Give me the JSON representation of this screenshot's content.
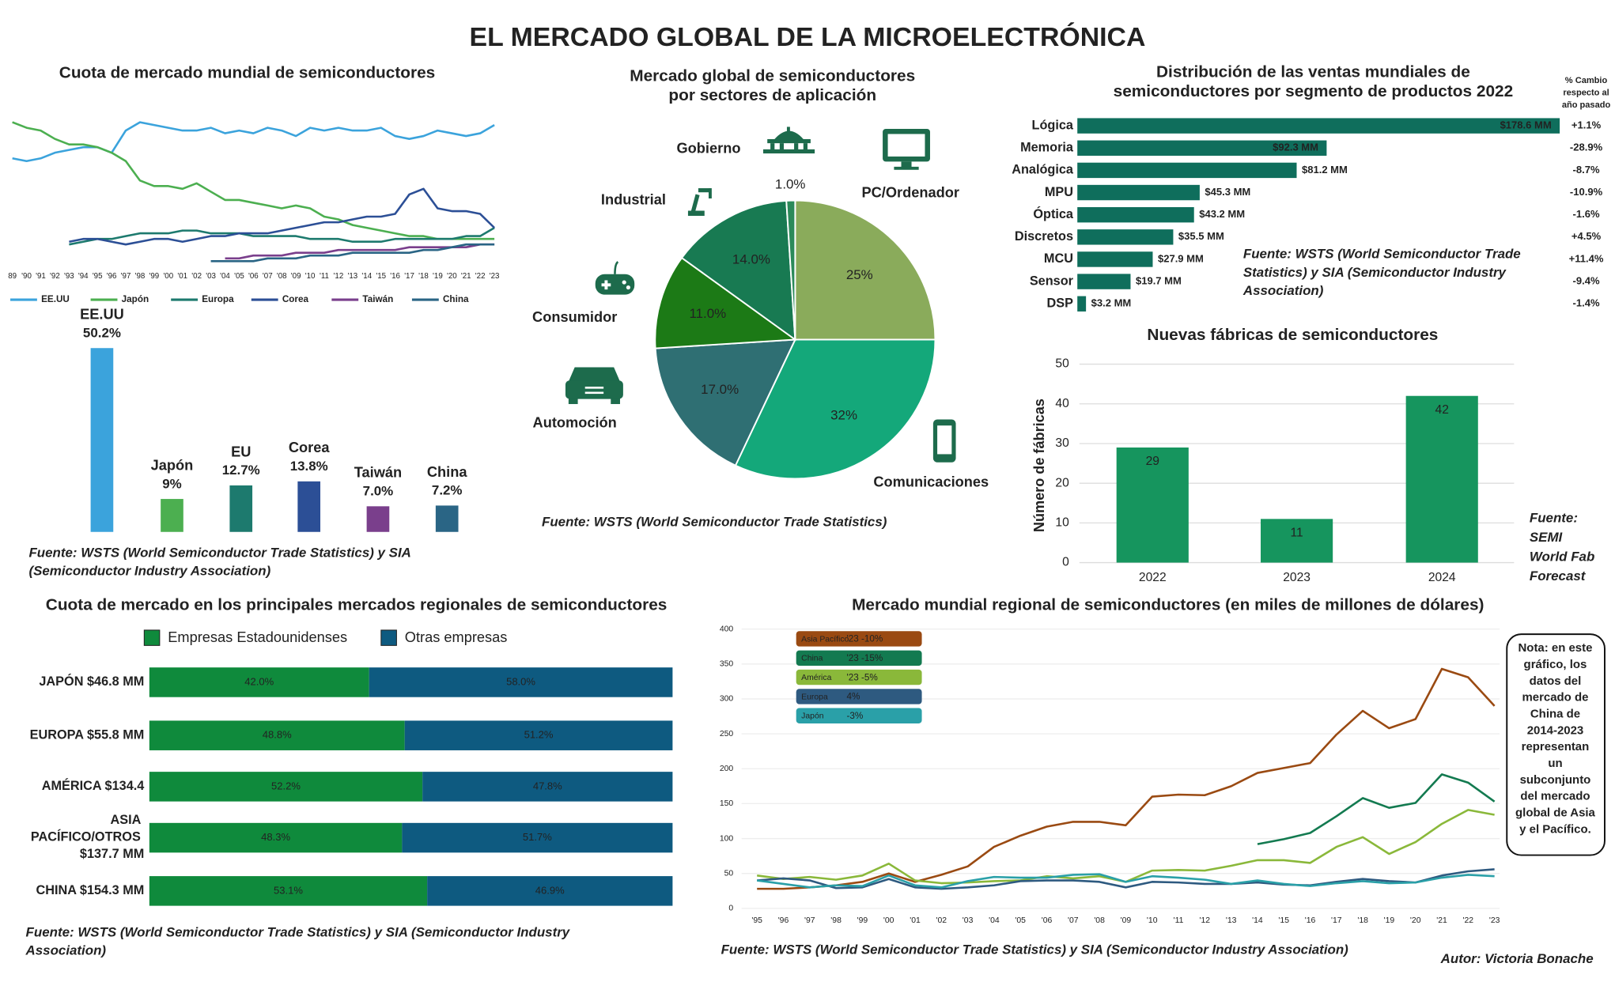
{
  "title": "EL MERCADO GLOBAL DE LA MICROELECTRÓNICA",
  "author": "Autor: Victoria Bonache",
  "chart_data": [
    {
      "type": "line",
      "title": "Cuota de mercado mundial de semiconductores",
      "categories": [
        "89",
        "'90",
        "'91",
        "'92",
        "'93",
        "'94",
        "'95",
        "'96",
        "'97",
        "'98",
        "'99",
        "'00",
        "'01",
        "'02",
        "'03",
        "'04",
        "'05",
        "'06",
        "'07",
        "'08",
        "'09",
        "'10",
        "'11",
        "'12",
        "'13",
        "'14",
        "'15",
        "'16",
        "'17",
        "'18",
        "'19",
        "'20",
        "'21",
        "'22",
        "'23"
      ],
      "ylim": [
        0,
        60
      ],
      "series": [
        {
          "name": "EE.UU",
          "color": "#3ba3dc",
          "values": [
            38,
            37,
            38,
            40,
            41,
            42,
            42,
            40,
            48,
            51,
            50,
            49,
            48,
            48,
            49,
            47,
            48,
            47,
            49,
            48,
            46,
            49,
            48,
            49,
            48,
            48,
            49,
            46,
            45,
            46,
            48,
            47,
            46,
            47,
            50
          ]
        },
        {
          "name": "Japón",
          "color": "#4caf50",
          "values": [
            51,
            49,
            48,
            45,
            43,
            43,
            42,
            40,
            37,
            30,
            28,
            28,
            27,
            29,
            26,
            23,
            23,
            22,
            21,
            20,
            21,
            20,
            17,
            16,
            14,
            13,
            12,
            11,
            10,
            10,
            9,
            9,
            9,
            9,
            9
          ]
        },
        {
          "name": "Europa",
          "color": "#1d7a6e",
          "values": [
            null,
            null,
            null,
            null,
            7,
            8,
            9,
            9,
            10,
            11,
            11,
            11,
            12,
            12,
            11,
            11,
            11,
            10,
            10,
            10,
            10,
            9,
            9,
            9,
            8,
            8,
            8,
            9,
            9,
            9,
            9,
            9,
            10,
            10,
            13
          ]
        },
        {
          "name": "Corea",
          "color": "#2c4f96",
          "values": [
            null,
            null,
            null,
            null,
            8,
            9,
            9,
            8,
            7,
            8,
            9,
            9,
            8,
            9,
            10,
            10,
            11,
            11,
            11,
            12,
            13,
            14,
            15,
            15,
            16,
            17,
            17,
            18,
            25,
            27,
            20,
            19,
            19,
            18,
            13
          ]
        },
        {
          "name": "Taiwán",
          "color": "#7a3f8c",
          "values": [
            null,
            null,
            null,
            null,
            null,
            null,
            null,
            null,
            null,
            null,
            null,
            null,
            null,
            null,
            null,
            2,
            2,
            3,
            3,
            3,
            4,
            4,
            4,
            5,
            5,
            5,
            5,
            5,
            6,
            6,
            6,
            6,
            6,
            7,
            7
          ]
        },
        {
          "name": "China",
          "color": "#2a6585",
          "values": [
            null,
            null,
            null,
            null,
            null,
            null,
            null,
            null,
            null,
            null,
            null,
            null,
            null,
            null,
            1,
            1,
            1,
            1,
            2,
            2,
            2,
            3,
            3,
            3,
            4,
            4,
            4,
            4,
            4,
            5,
            5,
            6,
            7,
            7,
            7
          ]
        }
      ]
    },
    {
      "type": "bar",
      "categories": [
        "EE.UU",
        "Japón",
        "EU",
        "Corea",
        "Taiwán",
        "China"
      ],
      "values": [
        50.2,
        9,
        12.7,
        13.8,
        7.0,
        7.2
      ],
      "value_labels": [
        "50.2%",
        "9%",
        "12.7%",
        "13.8%",
        "7.0%",
        "7.2%"
      ],
      "colors": [
        "#3ba3dc",
        "#4caf50",
        "#1d7a6e",
        "#2c4f96",
        "#7a3f8c",
        "#2a6585"
      ],
      "ylim": [
        0,
        50
      ],
      "source": [
        "Fuente: WSTS (World Semiconductor Trade Statistics) y SIA",
        "(Semiconductor Industry Association)"
      ]
    },
    {
      "type": "pie",
      "title": [
        "Mercado global de semiconductores",
        "por sectores de aplicación"
      ],
      "categories": [
        "PC/Ordenador",
        "Comunicaciones",
        "Automoción",
        "Consumidor",
        "Industrial",
        "Gobierno"
      ],
      "values": [
        25,
        32,
        17.0,
        11.0,
        14.0,
        1.0
      ],
      "value_labels": [
        "25%",
        "32%",
        "17.0%",
        "11.0%",
        "14.0%",
        "1.0%"
      ],
      "colors": [
        "#8aab5b",
        "#14a87a",
        "#2f6f73",
        "#1c7a16",
        "#187a52",
        "#2b8a5a"
      ],
      "source": "Fuente: WSTS (World Semiconductor Trade Statistics)"
    },
    {
      "type": "bar",
      "horizontal": true,
      "title": [
        "Distribución de las ventas mundiales de",
        "semiconductores por segmento de productos 2022"
      ],
      "categories": [
        "Lógica",
        "Memoria",
        "Analógica",
        "MPU",
        "Óptica",
        "Discretos",
        "MCU",
        "Sensor",
        "DSP"
      ],
      "values": [
        178.6,
        92.3,
        81.2,
        45.3,
        43.2,
        35.5,
        27.9,
        19.7,
        3.2
      ],
      "value_labels": [
        "$178.6 MM",
        "$92.3 MM",
        "$81.2 MM",
        "$45.3 MM",
        "$43.2 MM",
        "$35.5 MM",
        "$27.9 MM",
        "$19.7 MM",
        "$3.2 MM"
      ],
      "color": "#0f6e5c",
      "xlim": [
        0,
        180
      ],
      "change_header": [
        "% Cambio",
        "respecto al",
        "año pasado"
      ],
      "changes": [
        "+1.1%",
        "-28.9%",
        "-8.7%",
        "-10.9%",
        "-1.6%",
        "+4.5%",
        "+11.4%",
        "-9.4%",
        "-1.4%"
      ],
      "change_color": "#e07b1a",
      "source": [
        "Fuente: WSTS (World Semiconductor Trade",
        "Statistics) y SIA (Semiconductor Industry",
        "Association)"
      ]
    },
    {
      "type": "bar",
      "title": "Nuevas fábricas de semiconductores",
      "y_label": "Número de fábricas",
      "categories": [
        "2022",
        "2023",
        "2024"
      ],
      "values": [
        29,
        11,
        42
      ],
      "color": "#16955e",
      "ylim": [
        0,
        50
      ],
      "yticks": [
        0,
        10,
        20,
        30,
        40,
        50
      ],
      "grid": true,
      "source": [
        "Fuente:",
        "SEMI",
        "World Fab",
        "Forecast"
      ]
    },
    {
      "type": "bar",
      "horizontal": true,
      "stacked": true,
      "title": "Cuota de mercado en los principales mercados regionales de semiconductores",
      "categories": [
        "JAPÓN $46.8 MM",
        "EUROPA $55.8 MM",
        "AMÉRICA $134.4",
        "ASIA PACÍFICO/OTROS $137.7 MM",
        "CHINA $154.3 MM"
      ],
      "xlim": [
        0,
        100
      ],
      "series": [
        {
          "name": "Empresas Estadounidenses",
          "color": "#0f8a3c",
          "values": [
            42.0,
            48.8,
            52.2,
            48.3,
            53.1
          ],
          "value_labels": [
            "42.0%",
            "48.8%",
            "52.2%",
            "48.3%",
            "53.1%"
          ]
        },
        {
          "name": "Otras empresas",
          "color": "#0e5a80",
          "values": [
            58.0,
            51.2,
            47.8,
            51.7,
            46.9
          ],
          "value_labels": [
            "58.0%",
            "51.2%",
            "47.8%",
            "51.7%",
            "46.9%"
          ]
        }
      ],
      "source": [
        "Fuente: WSTS (World Semiconductor Trade Statistics) y SIA (Semiconductor Industry",
        "Association)"
      ]
    },
    {
      "type": "line",
      "title": "Mercado mundial regional de semiconductores (en miles de millones de dólares)",
      "categories": [
        "'95",
        "'96",
        "'97",
        "'98",
        "'99",
        "'00",
        "'01",
        "'02",
        "'03",
        "'04",
        "'05",
        "'06",
        "'07",
        "'08",
        "'09",
        "'10",
        "'11",
        "'12",
        "'13",
        "'14",
        "'15",
        "'16",
        "'17",
        "'18",
        "'19",
        "'20",
        "'21",
        "'22",
        "'23"
      ],
      "ylim": [
        0,
        400
      ],
      "yticks": [
        0,
        50,
        100,
        150,
        200,
        250,
        300,
        350,
        400
      ],
      "grid": true,
      "series": [
        {
          "name": "Asia Pacífico",
          "note": "'23 -10%",
          "color": "#9a4a12",
          "values": [
            28,
            28,
            30,
            33,
            38,
            50,
            38,
            48,
            60,
            88,
            104,
            117,
            124,
            124,
            119,
            160,
            163,
            162,
            175,
            194,
            201,
            208,
            249,
            283,
            258,
            271,
            343,
            331,
            290
          ]
        },
        {
          "name": "China",
          "note": "'23 -15%",
          "color": "#137a50",
          "values": [
            null,
            null,
            null,
            null,
            null,
            null,
            null,
            null,
            null,
            null,
            null,
            null,
            null,
            null,
            null,
            null,
            null,
            null,
            null,
            92,
            99,
            108,
            132,
            158,
            144,
            151,
            192,
            180,
            153
          ]
        },
        {
          "name": "América",
          "note": "'23 -5%",
          "color": "#8ab83a",
          "values": [
            47,
            42,
            45,
            41,
            47,
            64,
            40,
            36,
            37,
            39,
            40,
            46,
            43,
            46,
            38,
            54,
            55,
            54,
            61,
            69,
            69,
            65,
            88,
            102,
            78,
            95,
            121,
            141,
            134
          ]
        },
        {
          "name": "Europa",
          "note": "4%",
          "color": "#2e5a80",
          "values": [
            40,
            43,
            40,
            29,
            30,
            42,
            30,
            28,
            30,
            33,
            39,
            40,
            40,
            38,
            30,
            38,
            37,
            35,
            35,
            37,
            34,
            33,
            38,
            42,
            39,
            37,
            47,
            53,
            56
          ]
        },
        {
          "name": "Japón",
          "note": "-3%",
          "color": "#2aa0a8",
          "values": [
            40,
            35,
            30,
            33,
            32,
            47,
            33,
            30,
            39,
            45,
            44,
            44,
            48,
            49,
            38,
            46,
            44,
            41,
            35,
            40,
            35,
            32,
            36,
            39,
            36,
            37,
            44,
            48,
            46
          ]
        }
      ],
      "note": [
        "Nota: en este",
        "gráfico, los",
        "datos del",
        "mercado de",
        "China de",
        "2014-2023",
        "representan",
        "un",
        "subconjunto",
        "del mercado",
        "global de Asia",
        "y el Pacífico."
      ],
      "source": "Fuente: WSTS (World Semiconductor Trade Statistics) y SIA (Semiconductor Industry Association)"
    }
  ]
}
